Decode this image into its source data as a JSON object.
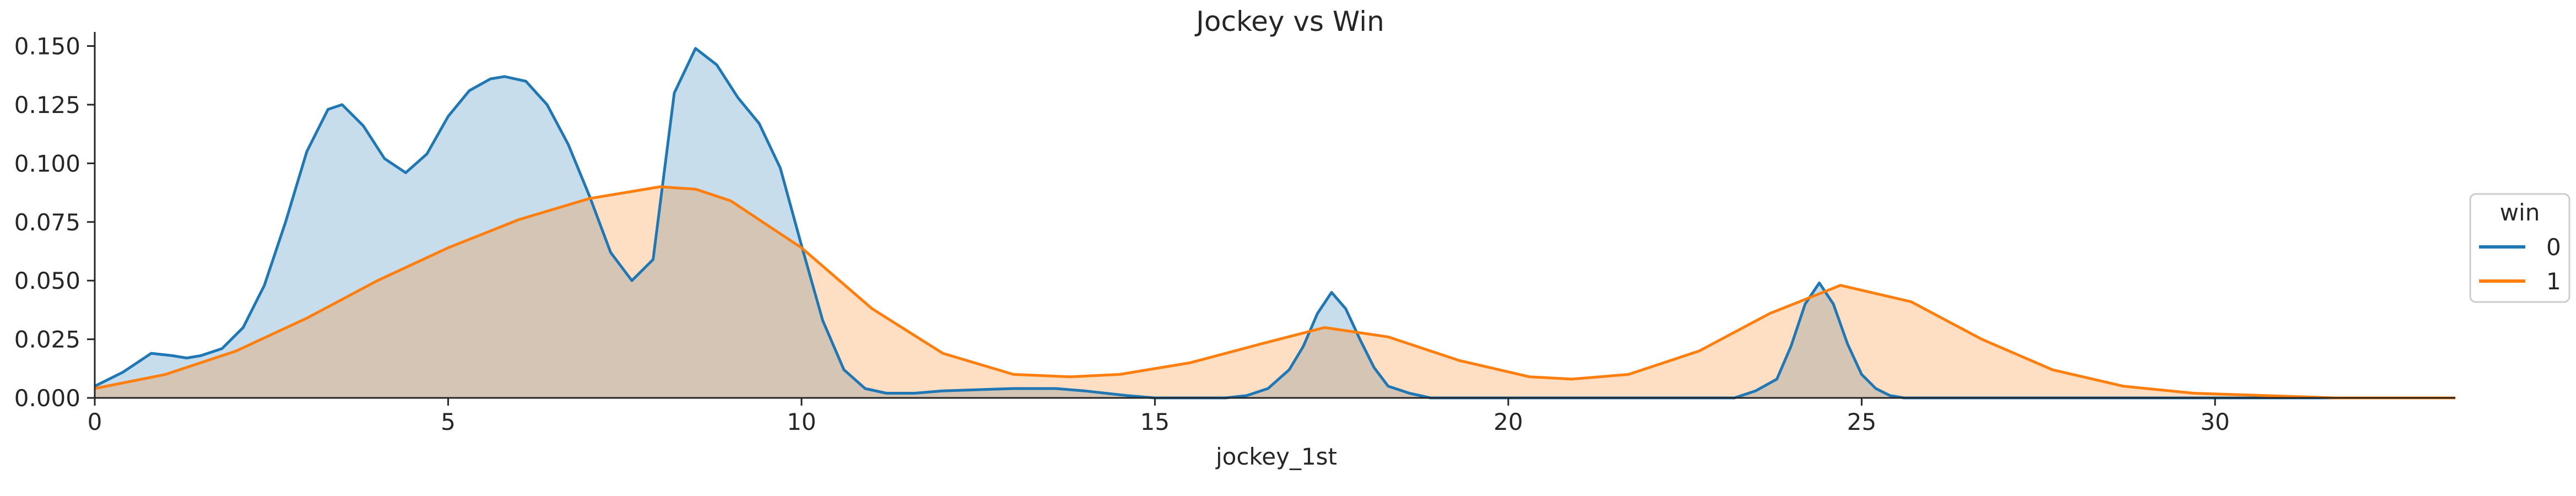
{
  "chart_data": {
    "type": "area",
    "title": "Jockey vs Win",
    "xlabel": "jockey_1st",
    "ylabel": "",
    "xlim": [
      0,
      33.4
    ],
    "ylim": [
      0,
      0.156
    ],
    "x_ticks": [
      0,
      5,
      10,
      15,
      20,
      25,
      30
    ],
    "y_ticks": [
      0.0,
      0.025,
      0.05,
      0.075,
      0.1,
      0.125,
      0.15
    ],
    "y_tick_labels": [
      "0.000",
      "0.025",
      "0.050",
      "0.075",
      "0.100",
      "0.125",
      "0.150"
    ],
    "grid": false,
    "legend": {
      "title": "win",
      "placement": "center-right"
    },
    "series": [
      {
        "name": "0",
        "color": "#1f77b4",
        "fill": "#c6d9ed",
        "x": [
          0,
          0.4,
          0.8,
          1.1,
          1.3,
          1.5,
          1.8,
          2.1,
          2.4,
          2.7,
          3.0,
          3.3,
          3.5,
          3.8,
          4.1,
          4.4,
          4.7,
          5.0,
          5.3,
          5.6,
          5.8,
          6.1,
          6.4,
          6.7,
          7.0,
          7.3,
          7.6,
          7.9,
          8.2,
          8.5,
          8.8,
          9.1,
          9.4,
          9.7,
          10.0,
          10.3,
          10.6,
          10.9,
          11.2,
          11.6,
          12.0,
          13.0,
          13.6,
          14.0,
          14.6,
          15.0,
          15.5,
          16.0,
          16.3,
          16.6,
          16.9,
          17.1,
          17.3,
          17.5,
          17.7,
          17.9,
          18.1,
          18.3,
          18.6,
          18.9,
          19.3,
          20,
          22,
          23.2,
          23.5,
          23.8,
          24.0,
          24.2,
          24.4,
          24.6,
          24.8,
          25.0,
          25.2,
          25.4,
          25.6,
          25.8,
          26.1,
          26.5,
          27.5,
          33.4
        ],
        "values": [
          0.005,
          0.011,
          0.019,
          0.018,
          0.017,
          0.018,
          0.021,
          0.03,
          0.048,
          0.075,
          0.105,
          0.123,
          0.125,
          0.116,
          0.102,
          0.096,
          0.104,
          0.12,
          0.131,
          0.136,
          0.137,
          0.135,
          0.125,
          0.108,
          0.086,
          0.062,
          0.05,
          0.059,
          0.13,
          0.149,
          0.142,
          0.128,
          0.117,
          0.098,
          0.065,
          0.033,
          0.012,
          0.004,
          0.002,
          0.002,
          0.003,
          0.004,
          0.004,
          0.003,
          0.001,
          0.0,
          0.0,
          0.0,
          0.001,
          0.004,
          0.012,
          0.022,
          0.036,
          0.045,
          0.038,
          0.025,
          0.013,
          0.005,
          0.002,
          0.0,
          0.0,
          0.0,
          0.0,
          0.0,
          0.003,
          0.008,
          0.022,
          0.04,
          0.049,
          0.04,
          0.023,
          0.01,
          0.004,
          0.001,
          0.0,
          0.0,
          0.0,
          0.0,
          0.0,
          0.0
        ]
      },
      {
        "name": "1",
        "color": "#ff7f0e",
        "fill": "#ffd9bb",
        "x": [
          0,
          1,
          2,
          3,
          4,
          5,
          6,
          7,
          8,
          8.5,
          9,
          10,
          11,
          12,
          13,
          13.8,
          14.5,
          15.5,
          16.5,
          17.4,
          18.3,
          19.3,
          20.3,
          20.9,
          21.7,
          22.7,
          23.7,
          24.7,
          25.7,
          26.7,
          27.7,
          28.7,
          29.7,
          30.7,
          31.7,
          33.4
        ],
        "values": [
          0.004,
          0.01,
          0.02,
          0.034,
          0.05,
          0.064,
          0.076,
          0.085,
          0.09,
          0.089,
          0.084,
          0.064,
          0.038,
          0.019,
          0.01,
          0.009,
          0.01,
          0.015,
          0.023,
          0.03,
          0.026,
          0.016,
          0.009,
          0.008,
          0.01,
          0.02,
          0.036,
          0.048,
          0.041,
          0.025,
          0.012,
          0.005,
          0.002,
          0.001,
          0.0,
          0.0
        ]
      }
    ]
  }
}
